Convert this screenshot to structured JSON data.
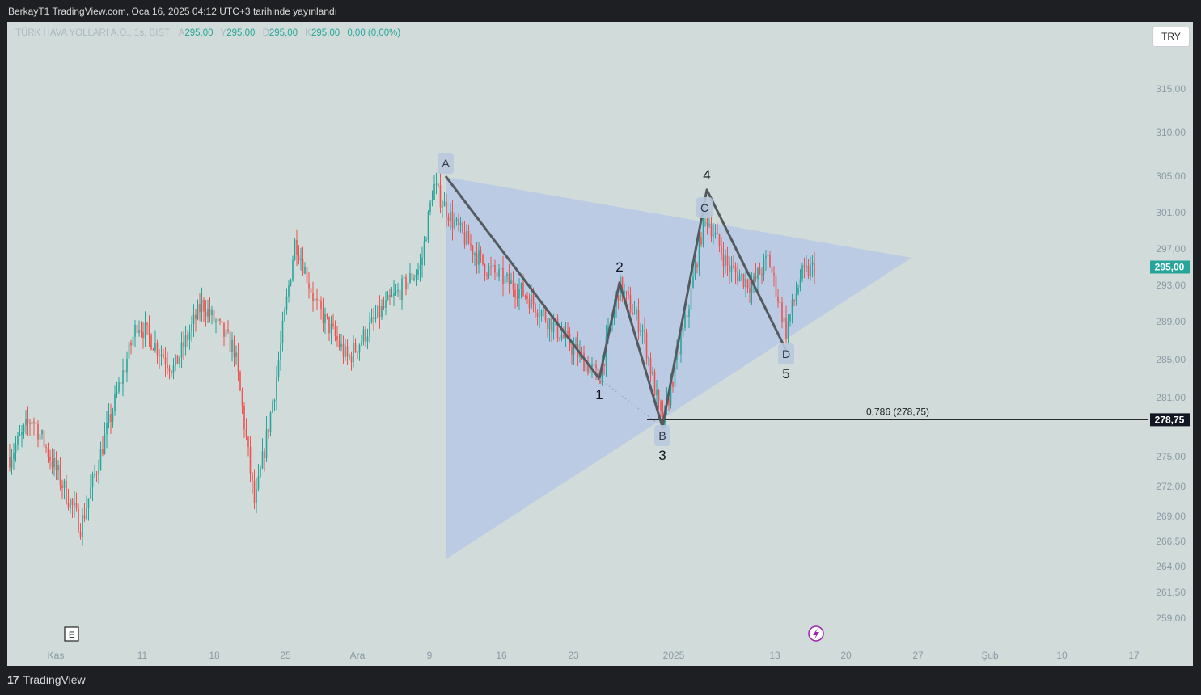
{
  "header": {
    "published": "BerkayT1 TradingView.com, Oca 16, 2025 04:12 UTC+3 tarihinde yayınlandı"
  },
  "symbol": {
    "name": "TÜRK HAVA YOLLARI A.O., 1s, BIST",
    "ohlc": [
      {
        "key": "A",
        "value": "295,00"
      },
      {
        "key": "Y",
        "value": "295,00"
      },
      {
        "key": "D",
        "value": "295,00"
      },
      {
        "key": "K",
        "value": "295,00"
      }
    ],
    "change": "0,00 (0,00%)"
  },
  "currency_button": "TRY",
  "footer": {
    "brand": "TradingView"
  },
  "colors": {
    "up": "#26a69a",
    "down": "#ef5350",
    "triangle": "#b3c6e6",
    "wave": "#555a5e"
  },
  "chart_data": {
    "type": "candlestick",
    "ylim": [
      257,
      320
    ],
    "y_ticks": [
      "259,00",
      "261,50",
      "264,00",
      "266,50",
      "269,00",
      "272,00",
      "275,00",
      "281,00",
      "285,00",
      "289,00",
      "293,00",
      "297,00",
      "301,00",
      "305,00",
      "310,00",
      "315,00"
    ],
    "x_ticks": [
      "Kas",
      "11",
      "18",
      "25",
      "Ara",
      "9",
      "16",
      "23",
      "2025",
      "13",
      "20",
      "27",
      "Şub",
      "10",
      "17"
    ],
    "current_price": "295,00",
    "fib_label": "0,786 (278,75)",
    "fib_price_tag": "278,75",
    "pattern_points": [
      {
        "label": "A",
        "date": "Ara 10",
        "price": 305
      },
      {
        "label": "B",
        "date": "Ara 31",
        "price": 278
      }
    ],
    "pattern_points_2": [
      {
        "label": "C",
        "date": "Oca 3",
        "price": 303.5
      },
      {
        "label": "D",
        "date": "Oca 14",
        "price": 286
      }
    ],
    "wave_labels": [
      {
        "label": "1",
        "price": 283
      },
      {
        "label": "2",
        "price": 293.3
      },
      {
        "label": "3",
        "price": 278
      },
      {
        "label": "4",
        "price": 303.5
      },
      {
        "label": "5",
        "price": 286
      }
    ],
    "event_markers": [
      "E"
    ]
  }
}
